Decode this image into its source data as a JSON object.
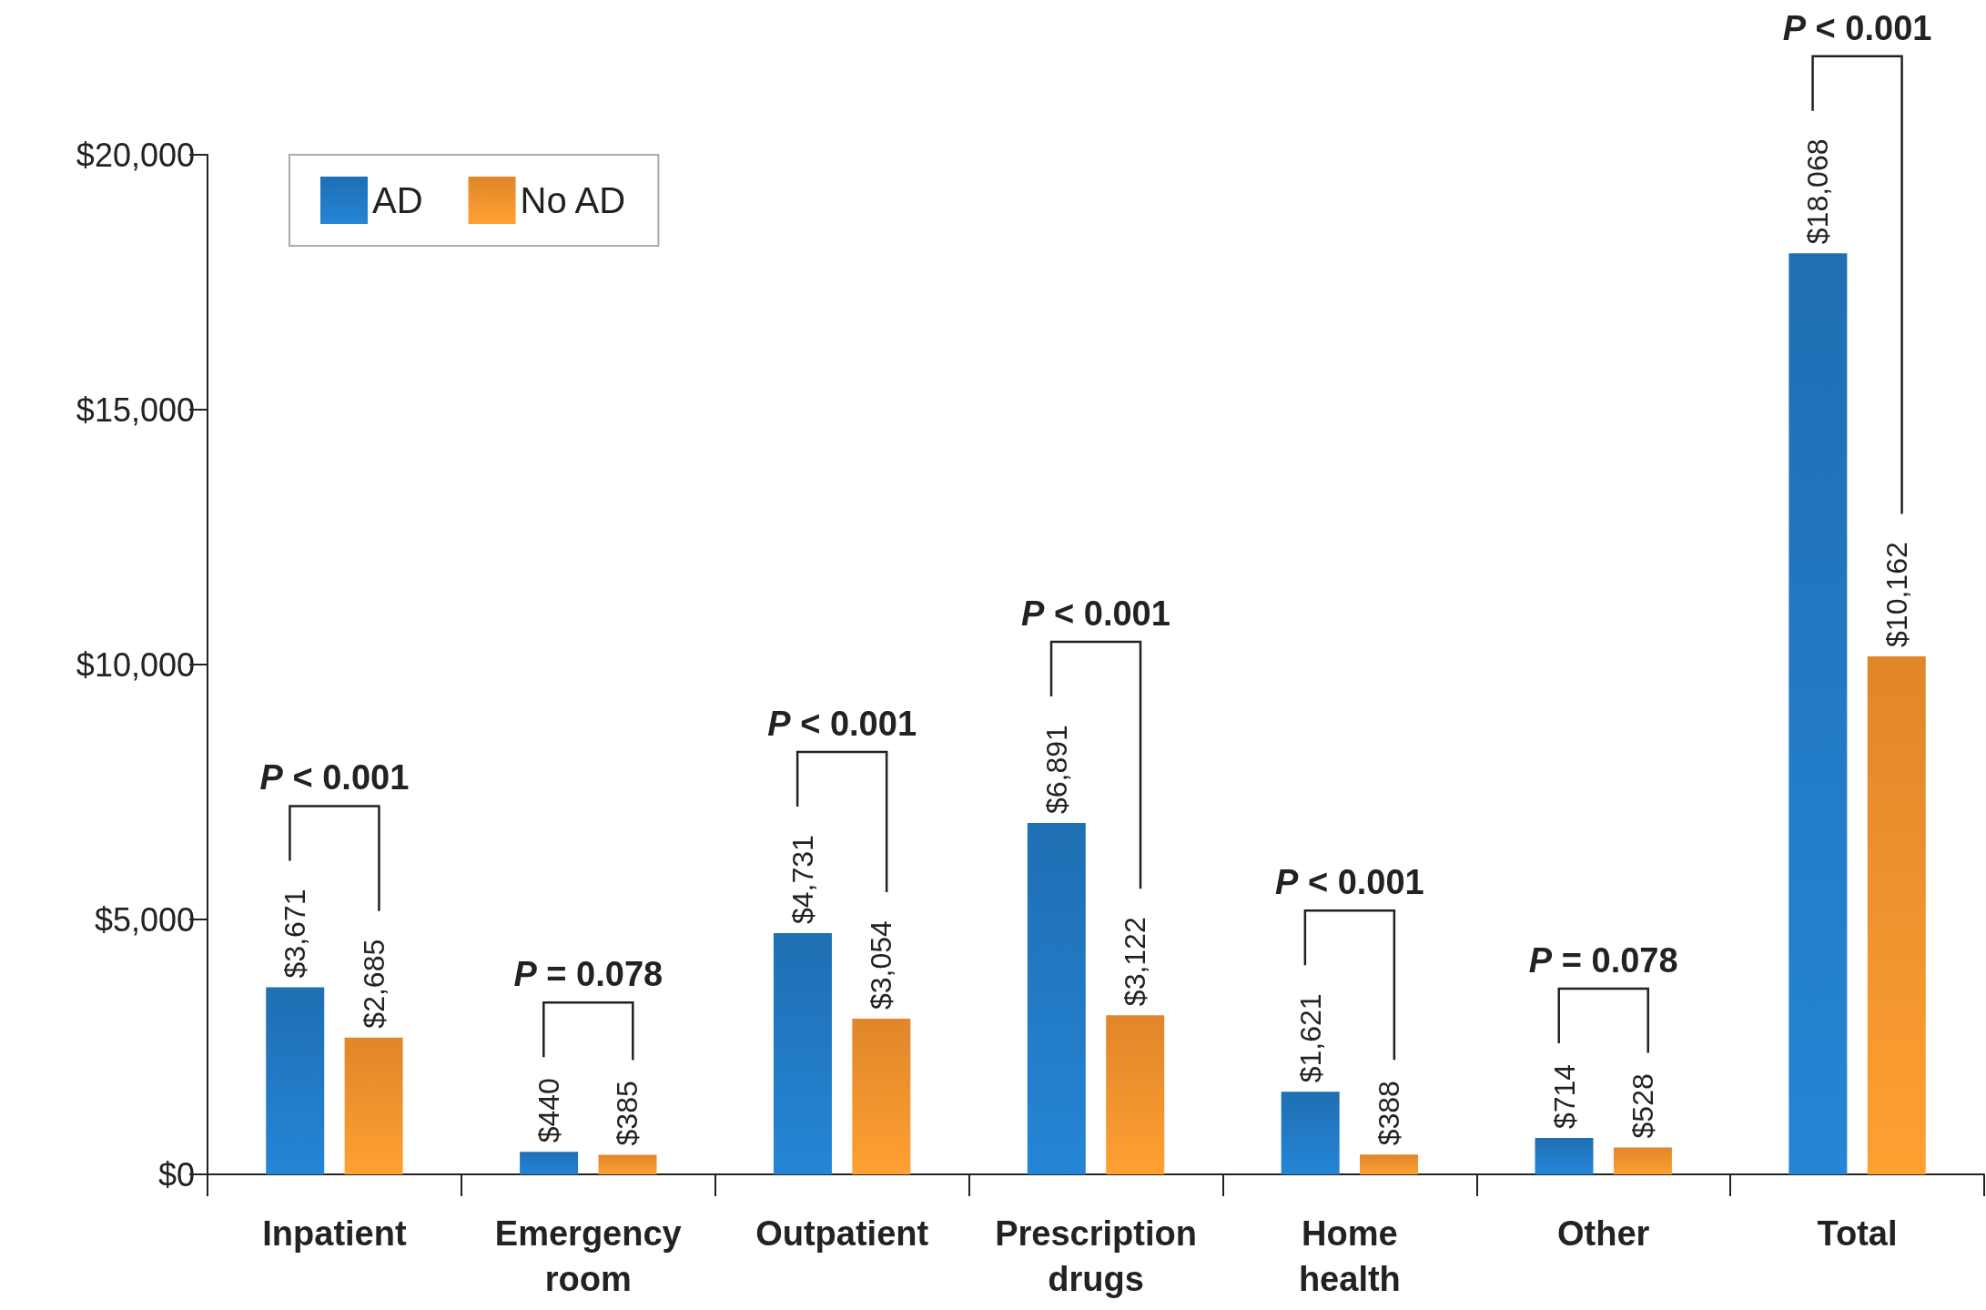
{
  "chart_data": {
    "type": "bar",
    "categories": [
      "Inpatient",
      "Emergency room",
      "Outpatient",
      "Prescription drugs",
      "Home health",
      "Other",
      "Total"
    ],
    "series": [
      {
        "name": "AD",
        "color": "#1f6fb3",
        "values": [
          3671,
          440,
          4731,
          6891,
          1621,
          714,
          18068
        ],
        "value_labels": [
          "$3,671",
          "$440",
          "$4,731",
          "$6,891",
          "$1,621",
          "$714",
          "$18,068"
        ]
      },
      {
        "name": "No AD",
        "color": "#e0862a",
        "values": [
          2685,
          385,
          3054,
          3122,
          388,
          528,
          10162
        ],
        "value_labels": [
          "$2,685",
          "$385",
          "$3,054",
          "$3,122",
          "$388",
          "$528",
          "$10,162"
        ]
      }
    ],
    "ylim": [
      0,
      20000
    ],
    "yticks": [
      {
        "value": 0,
        "label": "$0"
      },
      {
        "value": 5000,
        "label": "$5,000"
      },
      {
        "value": 10000,
        "label": "$10,000"
      },
      {
        "value": 15000,
        "label": "$15,000"
      },
      {
        "value": 20000,
        "label": "$20,000"
      }
    ],
    "grid": false,
    "legend": "top left",
    "annotations": [
      "P < 0.001",
      "P = 0.078",
      "P < 0.001",
      "P < 0.001",
      "P < 0.001",
      "P = 0.078",
      "P < 0.001"
    ]
  }
}
